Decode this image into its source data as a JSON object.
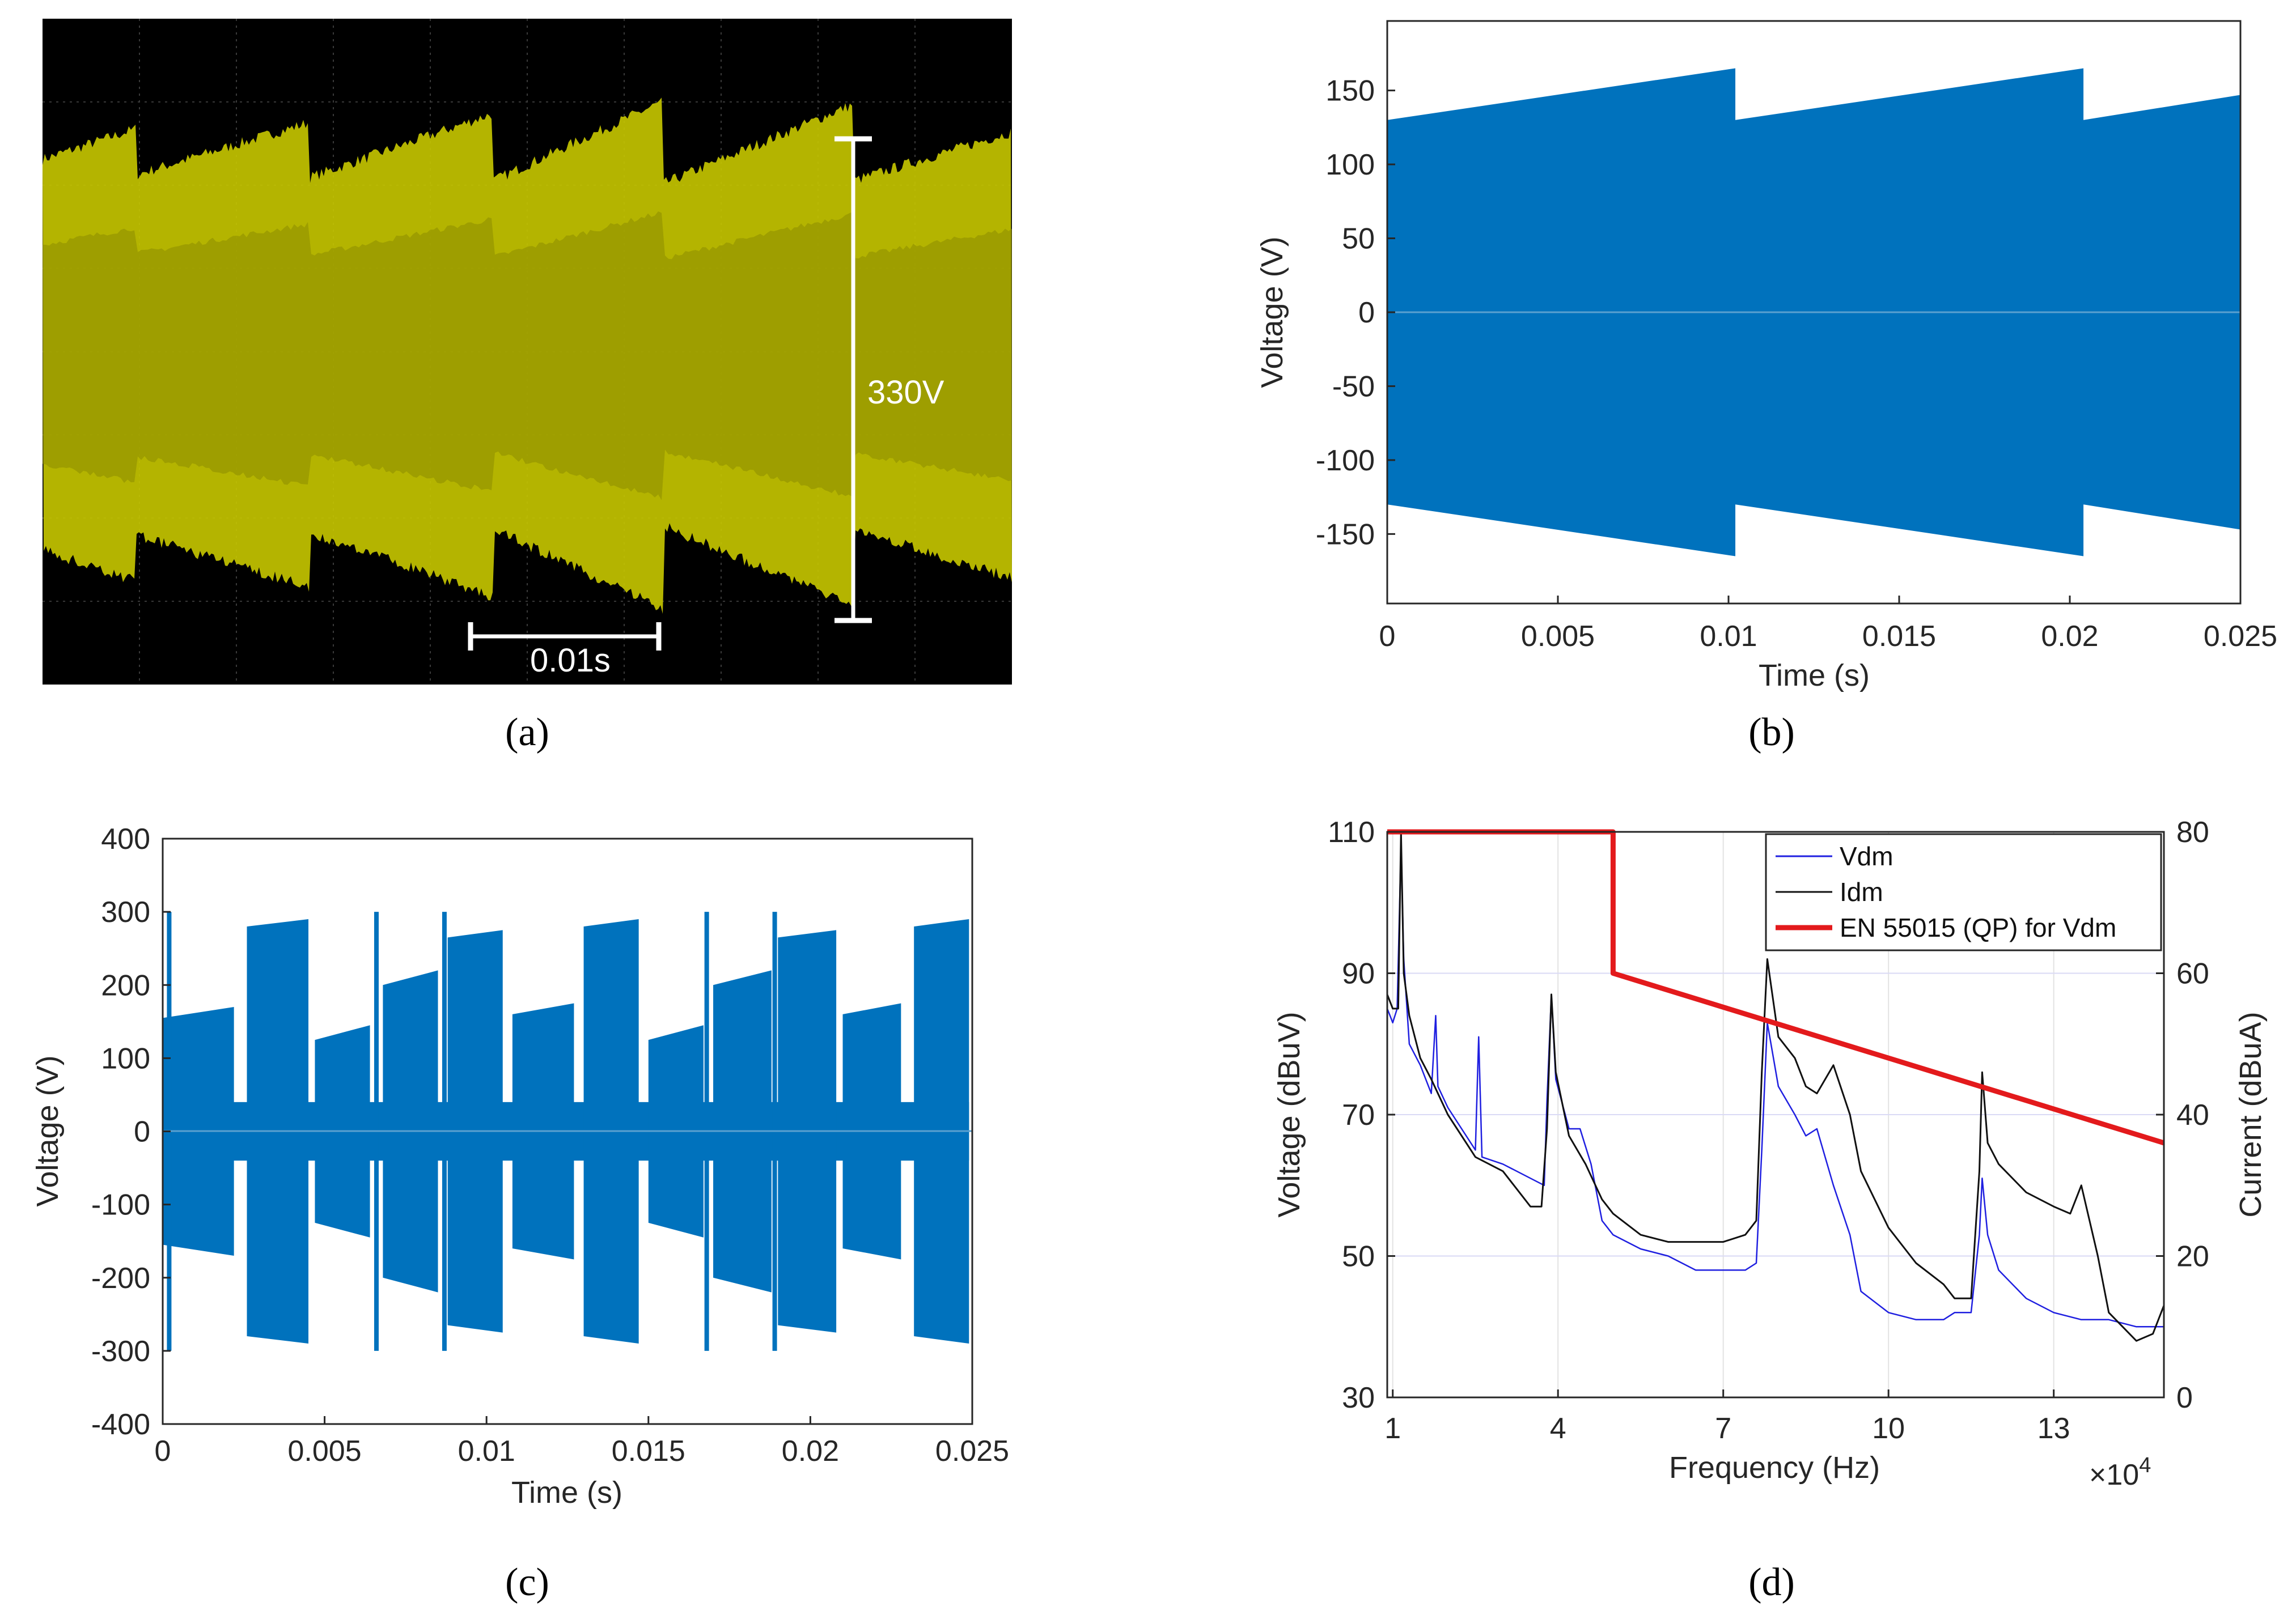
{
  "panels": {
    "a": {
      "label": "(a)"
    },
    "b": {
      "label": "(b)"
    },
    "c": {
      "label": "(c)"
    },
    "d": {
      "label": "(d)"
    }
  },
  "colors": {
    "waveform_blue": "#0072bd",
    "scope_yellow": "#c8c800",
    "limit_red": "#e31a1c",
    "vdm_blue": "#1f1fe0",
    "idm_black": "#111111"
  },
  "chart_data": [
    {
      "id": "a",
      "type": "oscilloscope",
      "annotations": {
        "amplitude": "330V",
        "time_scale": "0.01s"
      }
    },
    {
      "id": "b",
      "type": "area",
      "xlabel": "Time (s)",
      "ylabel": "Voltage (V)",
      "xlim": [
        0,
        0.025
      ],
      "ylim": [
        -197,
        197
      ],
      "xticks": [
        "0",
        "0.005",
        "0.01",
        "0.015",
        "0.02",
        "0.025"
      ],
      "yticks": [
        "150",
        "100",
        "50",
        "0",
        "-50",
        "-100",
        "-150"
      ],
      "envelope": {
        "x": [
          0,
          0.0102,
          0.0102,
          0.0204,
          0.0204,
          0.025
        ],
        "y": [
          130,
          165,
          130,
          165,
          130,
          147
        ]
      }
    },
    {
      "id": "c",
      "type": "area",
      "xlabel": "Time (s)",
      "ylabel": "Voltage (V)",
      "xlim": [
        0,
        0.025
      ],
      "ylim": [
        -400,
        400
      ],
      "xticks": [
        "0",
        "0.005",
        "0.01",
        "0.015",
        "0.02",
        "0.025"
      ],
      "yticks": [
        "400",
        "300",
        "200",
        "100",
        "0",
        "-100",
        "-200",
        "-300",
        "-400"
      ],
      "segments": [
        {
          "x0": 0.0,
          "x1": 0.0022,
          "y0": 155,
          "y1": 170
        },
        {
          "x0": 0.0026,
          "x1": 0.0045,
          "y0": 280,
          "y1": 290
        },
        {
          "x0": 0.0047,
          "x1": 0.0064,
          "y0": 125,
          "y1": 145
        },
        {
          "x0": 0.0068,
          "x1": 0.0085,
          "y0": 200,
          "y1": 220
        },
        {
          "x0": 0.0088,
          "x1": 0.0105,
          "y0": 265,
          "y1": 275
        },
        {
          "x0": 0.0108,
          "x1": 0.0127,
          "y0": 160,
          "y1": 175
        },
        {
          "x0": 0.013,
          "x1": 0.0147,
          "y0": 280,
          "y1": 290
        },
        {
          "x0": 0.015,
          "x1": 0.0167,
          "y0": 125,
          "y1": 145
        },
        {
          "x0": 0.017,
          "x1": 0.0188,
          "y0": 200,
          "y1": 220
        },
        {
          "x0": 0.019,
          "x1": 0.0208,
          "y0": 265,
          "y1": 275
        },
        {
          "x0": 0.021,
          "x1": 0.0228,
          "y0": 160,
          "y1": 175
        },
        {
          "x0": 0.0232,
          "x1": 0.0249,
          "y0": 280,
          "y1": 290
        }
      ],
      "spikes": [
        0.0002,
        0.0066,
        0.0087,
        0.0168,
        0.0189
      ]
    },
    {
      "id": "d",
      "type": "line",
      "xlabel": "Frequency (Hz)",
      "ylabel_left": "Voltage (dBuV)",
      "ylabel_right": "Current (dBuA)",
      "xlim": [
        9000,
        150000
      ],
      "ylim_left": [
        30,
        110
      ],
      "ylim_right": [
        0,
        80
      ],
      "x_multiplier": "×10",
      "x_multiplier_exp": "4",
      "xticks": [
        "1",
        "4",
        "7",
        "10",
        "13"
      ],
      "yticks_left": [
        "110",
        "90",
        "70",
        "50",
        "30"
      ],
      "yticks_right": [
        "80",
        "60",
        "40",
        "20",
        "0"
      ],
      "legend": [
        "Vdm",
        "Idm",
        "EN 55015 (QP) for Vdm"
      ],
      "series": [
        {
          "name": "Vdm",
          "axis": "left",
          "x": [
            9000,
            9500,
            10000,
            10800,
            11500,
            12000,
            13000,
            15000,
            17000,
            17800,
            18200,
            20000,
            25000,
            25600,
            26200,
            30000,
            35000,
            37500,
            38000,
            38800,
            39600,
            42000,
            44000,
            46000,
            48000,
            50000,
            55000,
            60000,
            65000,
            70000,
            74000,
            76000,
            77000,
            78000,
            80000,
            83000,
            85000,
            87000,
            90000,
            93000,
            95000,
            100000,
            105000,
            110000,
            112000,
            115000,
            116500,
            117000,
            118000,
            120000,
            125000,
            130000,
            135000,
            140000,
            145000,
            150000
          ],
          "y": [
            85,
            84,
            83,
            85,
            108,
            92,
            80,
            77,
            73,
            84,
            74,
            71,
            65,
            81,
            64,
            63,
            61,
            60,
            72,
            87,
            75,
            68,
            68,
            63,
            55,
            53,
            51,
            50,
            48,
            48,
            48,
            49,
            65,
            83,
            74,
            70,
            67,
            68,
            60,
            53,
            45,
            42,
            41,
            41,
            42,
            42,
            53,
            61,
            53,
            48,
            44,
            42,
            41,
            41,
            40,
            40
          ]
        },
        {
          "name": "Idm",
          "axis": "right",
          "x": [
            9000,
            10000,
            11000,
            11500,
            12000,
            13000,
            15000,
            17000,
            20000,
            25000,
            30000,
            35000,
            37000,
            38000,
            38800,
            39600,
            42000,
            45000,
            48000,
            50000,
            55000,
            60000,
            65000,
            70000,
            74000,
            76000,
            77000,
            78000,
            80000,
            83000,
            85000,
            87000,
            90000,
            93000,
            95000,
            100000,
            105000,
            110000,
            112000,
            115000,
            116500,
            117000,
            118000,
            120000,
            125000,
            130000,
            133000,
            135000,
            138000,
            140000,
            145000,
            148000,
            150000
          ],
          "y": [
            57,
            55,
            55,
            80,
            60,
            54,
            48,
            45,
            40,
            34,
            32,
            27,
            27,
            38,
            57,
            46,
            37,
            33,
            28,
            26,
            23,
            22,
            22,
            22,
            23,
            25,
            46,
            62,
            51,
            48,
            44,
            43,
            47,
            40,
            32,
            24,
            19,
            16,
            14,
            14,
            32,
            46,
            36,
            33,
            29,
            27,
            26,
            30,
            20,
            12,
            8,
            9,
            13
          ]
        },
        {
          "name": "EN 55015 (QP) for Vdm",
          "axis": "left",
          "x": [
            9000,
            50000,
            50000,
            150000
          ],
          "y": [
            110,
            110,
            90,
            66
          ]
        }
      ]
    }
  ]
}
